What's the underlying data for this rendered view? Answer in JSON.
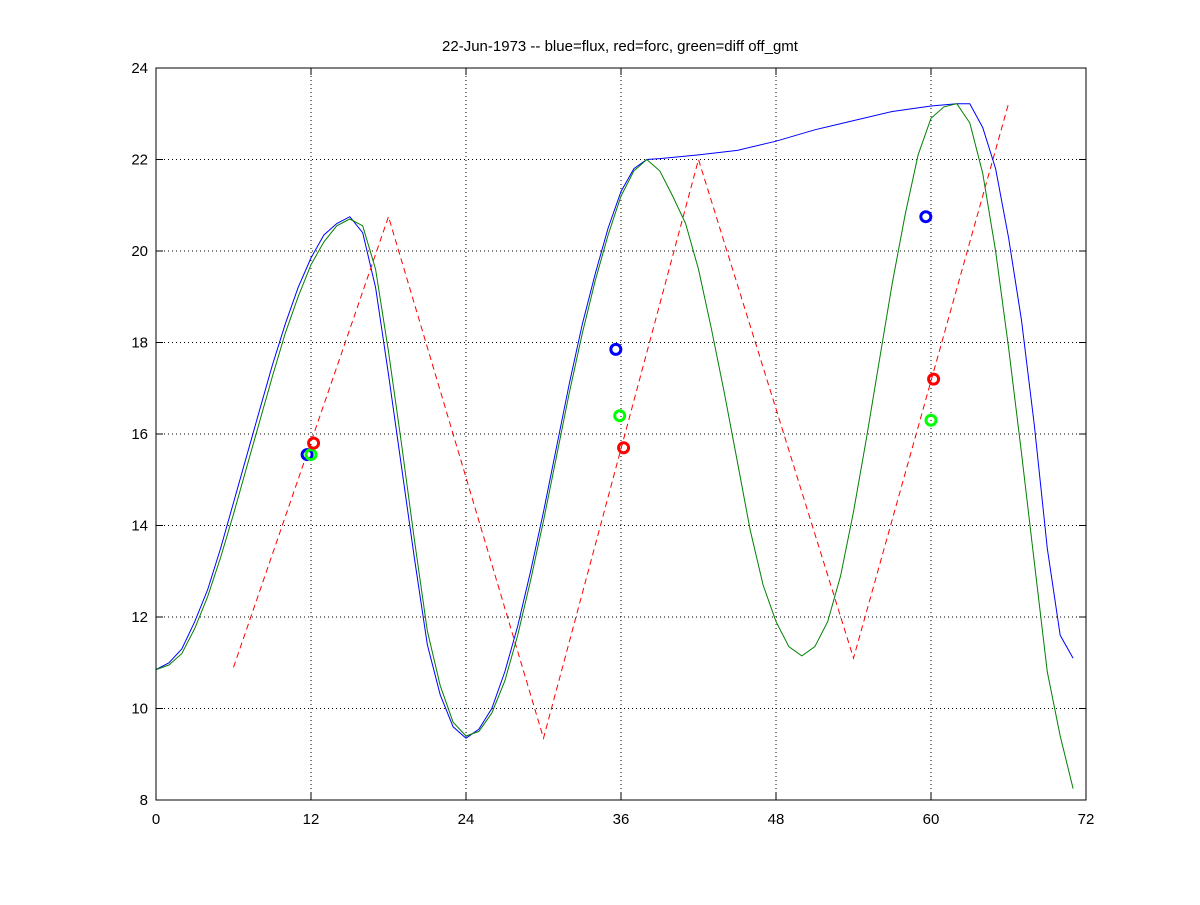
{
  "chart_data": {
    "type": "line",
    "title": "22-Jun-1973 -- blue=flux, red=forc, green=diff off_gmt",
    "xlabel": "",
    "ylabel": "",
    "xlim": [
      0,
      72
    ],
    "ylim": [
      8,
      24
    ],
    "xticks": [
      0,
      12,
      24,
      36,
      48,
      60,
      72
    ],
    "yticks": [
      8,
      10,
      12,
      14,
      16,
      18,
      20,
      22,
      24
    ],
    "grid": true,
    "series": [
      {
        "name": "flux",
        "color": "#0000ff",
        "style": "solid",
        "x": [
          0,
          1,
          2,
          3,
          4,
          5,
          6,
          7,
          8,
          9,
          10,
          11,
          12,
          13,
          14,
          15,
          16,
          17,
          18,
          19,
          20,
          21,
          22,
          23,
          24,
          25,
          26,
          27,
          28,
          29,
          30,
          31,
          32,
          33,
          34,
          35,
          36,
          37,
          38,
          39,
          42,
          45,
          48,
          51,
          54,
          57,
          60,
          62,
          63,
          64,
          65,
          66,
          67,
          68,
          69,
          70,
          71
        ],
        "y": [
          10.85,
          11.0,
          11.3,
          11.9,
          12.6,
          13.5,
          14.5,
          15.5,
          16.5,
          17.5,
          18.4,
          19.2,
          19.85,
          20.35,
          20.6,
          20.75,
          20.4,
          19.2,
          17.3,
          15.3,
          13.3,
          11.4,
          10.3,
          9.6,
          9.35,
          9.55,
          10.0,
          10.8,
          11.8,
          13.0,
          14.3,
          15.7,
          17.1,
          18.4,
          19.5,
          20.5,
          21.3,
          21.8,
          22.0,
          22.02,
          22.1,
          22.2,
          22.4,
          22.65,
          22.85,
          23.05,
          23.17,
          23.22,
          23.22,
          22.7,
          21.8,
          20.3,
          18.5,
          16.2,
          13.5,
          11.6,
          11.1
        ]
      },
      {
        "name": "diff",
        "color": "#008000",
        "style": "solid",
        "x": [
          0,
          1,
          2,
          3,
          4,
          5,
          6,
          7,
          8,
          9,
          10,
          11,
          12,
          13,
          14,
          15,
          16,
          17,
          18,
          19,
          20,
          21,
          22,
          23,
          24,
          25,
          26,
          27,
          28,
          29,
          30,
          31,
          32,
          33,
          34,
          35,
          36,
          37,
          38,
          39,
          40,
          41,
          42,
          43,
          44,
          45,
          46,
          47,
          48,
          49,
          50,
          51,
          52,
          53,
          54,
          55,
          56,
          57,
          58,
          59,
          60,
          61,
          62,
          63,
          64,
          65,
          66,
          67,
          68,
          69,
          70,
          71
        ],
        "y": [
          10.85,
          10.95,
          11.2,
          11.75,
          12.45,
          13.3,
          14.25,
          15.25,
          16.25,
          17.25,
          18.2,
          19.0,
          19.7,
          20.2,
          20.55,
          20.7,
          20.55,
          19.6,
          17.8,
          15.8,
          13.7,
          11.7,
          10.5,
          9.7,
          9.4,
          9.5,
          9.9,
          10.6,
          11.6,
          12.8,
          14.1,
          15.5,
          16.9,
          18.2,
          19.35,
          20.35,
          21.2,
          21.75,
          22.0,
          21.75,
          21.2,
          20.6,
          19.6,
          18.3,
          16.9,
          15.4,
          13.9,
          12.7,
          11.9,
          11.35,
          11.15,
          11.35,
          11.9,
          12.9,
          14.3,
          15.9,
          17.6,
          19.3,
          20.8,
          22.1,
          22.9,
          23.15,
          23.22,
          22.8,
          21.7,
          20.0,
          17.9,
          15.6,
          13.2,
          10.8,
          9.4,
          8.25
        ]
      },
      {
        "name": "forc",
        "color": "#ff0000",
        "style": "dashed",
        "x": [
          6,
          18,
          30,
          42,
          54,
          66
        ],
        "y": [
          10.9,
          20.75,
          9.35,
          22.0,
          11.1,
          23.22
        ]
      }
    ],
    "markers": [
      {
        "series": "flux",
        "color": "#0000ff",
        "x": 11.7,
        "y": 15.55
      },
      {
        "series": "diff",
        "color": "#00ff00",
        "x": 12.0,
        "y": 15.55
      },
      {
        "series": "forc",
        "color": "#ff0000",
        "x": 12.2,
        "y": 15.8
      },
      {
        "series": "flux",
        "color": "#0000ff",
        "x": 35.6,
        "y": 17.85
      },
      {
        "series": "diff",
        "color": "#00ff00",
        "x": 35.9,
        "y": 16.4
      },
      {
        "series": "forc",
        "color": "#ff0000",
        "x": 36.2,
        "y": 15.7
      },
      {
        "series": "flux",
        "color": "#0000ff",
        "x": 59.6,
        "y": 20.75
      },
      {
        "series": "diff",
        "color": "#00ff00",
        "x": 60.0,
        "y": 16.3
      },
      {
        "series": "forc",
        "color": "#ff0000",
        "x": 60.2,
        "y": 17.2
      }
    ]
  }
}
